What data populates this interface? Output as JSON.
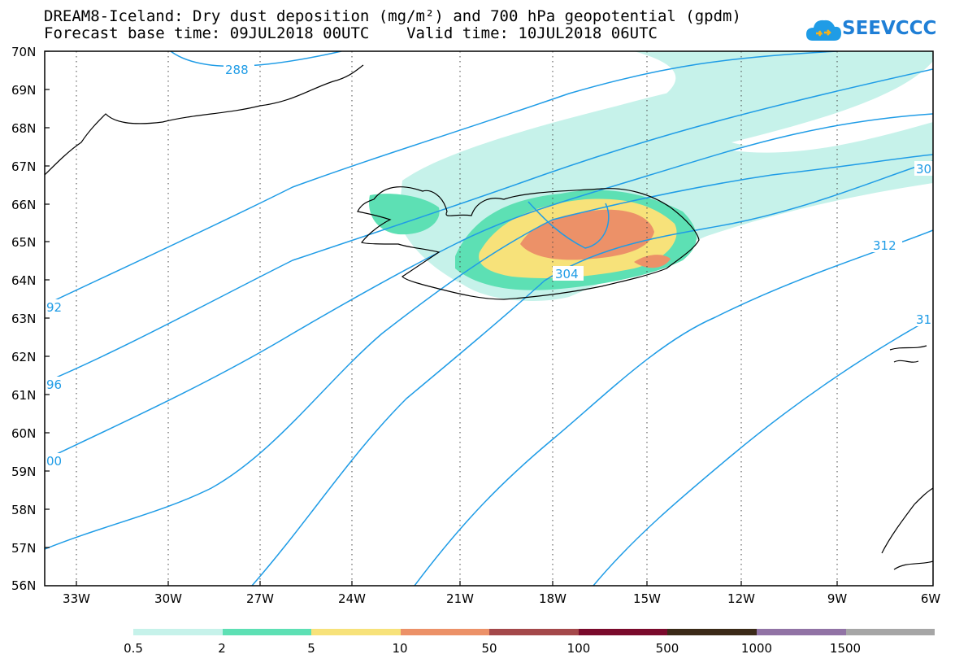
{
  "title_line1": "DREAM8-Iceland: Dry dust deposition (mg/m²) and 700 hPa geopotential (gpdm)",
  "title_line2": "Forecast base time: 09JUL2018 00UTC    Valid time: 10JUL2018 06UTC",
  "logo_text": "SEEVCCC",
  "colors": {
    "contour": "#1f9ce6",
    "coast": "#000000",
    "logo": "#1f7fd6"
  },
  "y_ticks": [
    "70N",
    "69N",
    "68N",
    "67N",
    "66N",
    "65N",
    "64N",
    "63N",
    "62N",
    "61N",
    "60N",
    "59N",
    "58N",
    "57N",
    "56N"
  ],
  "x_ticks": [
    "33W",
    "30W",
    "27W",
    "24W",
    "21W",
    "18W",
    "15W",
    "12W",
    "9W",
    "6W"
  ],
  "contour_labels": [
    "288",
    "92",
    "96",
    "00",
    "304",
    "312",
    "30",
    "31"
  ],
  "legend": {
    "colors": [
      "#c6f2ea",
      "#5de0b4",
      "#f7e27a",
      "#ec9168",
      "#a4484a",
      "#7a0a2c",
      "#3b2a18",
      "#9173a5",
      "#a6a6a6"
    ],
    "labels": [
      "0.5",
      "2",
      "5",
      "10",
      "50",
      "100",
      "500",
      "1000",
      "1500"
    ]
  }
}
